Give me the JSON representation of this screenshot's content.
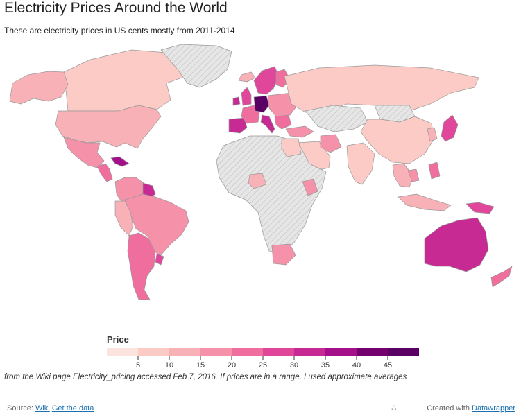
{
  "header": {
    "title": "Electricity Prices Around the World",
    "subtitle": "These are electricity prices in US cents mostly from 2011-2014"
  },
  "legend": {
    "title": "Price",
    "ticks": [
      "5",
      "10",
      "15",
      "20",
      "25",
      "30",
      "35",
      "40",
      "45"
    ],
    "colors": [
      "#fde3dd",
      "#fccbc6",
      "#f9b1b8",
      "#f591a9",
      "#ef6e9d",
      "#e0479a",
      "#c72a93",
      "#a4108a",
      "#74006f",
      "#5a0065"
    ]
  },
  "note": "from the Wiki page Electricity_pricing accessed Feb 7, 2016. If prices are in a range, I used approximate averages",
  "footer": {
    "source_label": "Source:",
    "source_link": "Wiki",
    "data_link": "Get the data",
    "created_label": "Created with",
    "created_link": "Datawrapper",
    "share_icon": "share-icon"
  },
  "map": {
    "nodata_color": "#e6e6e6",
    "border_color": "#999999",
    "regions": [
      {
        "id": "canada",
        "name": "Canada",
        "price": 9
      },
      {
        "id": "usa",
        "name": "United States",
        "price": 12
      },
      {
        "id": "alaska",
        "name": "Alaska",
        "price": 12
      },
      {
        "id": "mexico",
        "name": "Mexico",
        "price": 18
      },
      {
        "id": "central-america",
        "name": "Central America",
        "price": 22
      },
      {
        "id": "caribbean",
        "name": "Caribbean",
        "price": 38
      },
      {
        "id": "venezuela-colombia",
        "name": "Venezuela / Colombia",
        "price": 18
      },
      {
        "id": "guyana",
        "name": "Guyana",
        "price": 30
      },
      {
        "id": "brazil",
        "name": "Brazil",
        "price": 18
      },
      {
        "id": "peru",
        "name": "Peru",
        "price": 13
      },
      {
        "id": "argentina-chile",
        "name": "Argentina / Chile",
        "price": 20
      },
      {
        "id": "uruguay",
        "name": "Uruguay",
        "price": 25
      },
      {
        "id": "greenland",
        "name": "Greenland",
        "price": null
      },
      {
        "id": "iceland",
        "name": "Iceland",
        "price": 10
      },
      {
        "id": "uk",
        "name": "United Kingdom",
        "price": 25
      },
      {
        "id": "ireland",
        "name": "Ireland",
        "price": 30
      },
      {
        "id": "spain-portugal",
        "name": "Spain / Portugal",
        "price": 30
      },
      {
        "id": "france",
        "name": "France",
        "price": 20
      },
      {
        "id": "germany",
        "name": "Germany",
        "price": 45
      },
      {
        "id": "italy",
        "name": "Italy",
        "price": 30
      },
      {
        "id": "scandinavia",
        "name": "Scandinavia",
        "price": 25
      },
      {
        "id": "finland",
        "name": "Finland",
        "price": 20
      },
      {
        "id": "eastern-europe",
        "name": "Eastern Europe",
        "price": 15
      },
      {
        "id": "balkans",
        "name": "Balkans",
        "price": 20
      },
      {
        "id": "turkey",
        "name": "Turkey",
        "price": 15
      },
      {
        "id": "russia",
        "name": "Russia",
        "price": 8
      },
      {
        "id": "kazakhstan",
        "name": "Kazakhstan",
        "price": null
      },
      {
        "id": "mongolia",
        "name": "Mongolia",
        "price": null
      },
      {
        "id": "china",
        "name": "China",
        "price": 9
      },
      {
        "id": "middle-east",
        "name": "Middle East",
        "price": 5
      },
      {
        "id": "iran",
        "name": "Iran",
        "price": 15
      },
      {
        "id": "india",
        "name": "India",
        "price": 9
      },
      {
        "id": "southeast-asia",
        "name": "Southeast Asia",
        "price": 13
      },
      {
        "id": "thailand",
        "name": "Thailand",
        "price": 18
      },
      {
        "id": "japan",
        "name": "Japan",
        "price": 28
      },
      {
        "id": "korea",
        "name": "South Korea",
        "price": 12
      },
      {
        "id": "philippines",
        "name": "Philippines",
        "price": 20
      },
      {
        "id": "indonesia",
        "name": "Indonesia",
        "price": 12
      },
      {
        "id": "png",
        "name": "Papua New Guinea",
        "price": 25
      },
      {
        "id": "australia",
        "name": "Australia",
        "price": 33
      },
      {
        "id": "new-zealand",
        "name": "New Zealand",
        "price": 20
      },
      {
        "id": "africa",
        "name": "Africa",
        "price": null
      },
      {
        "id": "egypt",
        "name": "Egypt",
        "price": 5
      },
      {
        "id": "south-africa",
        "name": "South Africa",
        "price": 15
      },
      {
        "id": "nigeria",
        "name": "Nigeria",
        "price": 10
      },
      {
        "id": "kenya",
        "name": "Kenya",
        "price": 15
      }
    ]
  }
}
